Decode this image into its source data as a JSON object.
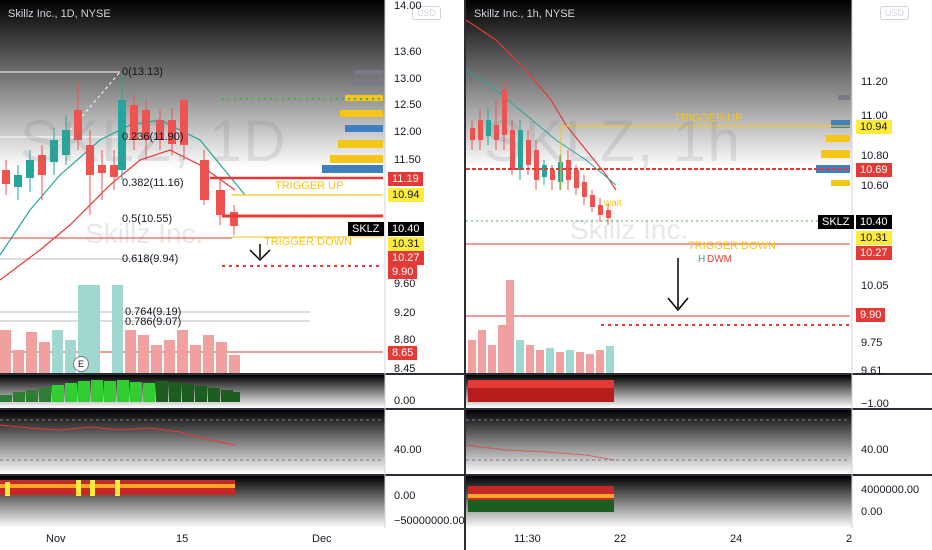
{
  "colors": {
    "up": "#26a69a",
    "down": "#ef5350",
    "trigger_up": "#f5c518",
    "trigger_down": "#e53935",
    "badge_red": "#e53935",
    "badge_yellow": "#ffeb3b"
  },
  "left": {
    "title": "Skillz Inc., 1D, NYSE",
    "currency": "USD",
    "watermark": "SKLZ, 1D",
    "watermark_sub": "Skillz Inc.",
    "price_axis": [
      "14.00",
      "13.60",
      "13.00",
      "12.50",
      "12.00",
      "11.50",
      "9.60",
      "9.20",
      "8.80",
      "8.45"
    ],
    "tags": {
      "t1119": "11.19",
      "t1094": "10.94",
      "sym": "SKLZ",
      "t1040": "10.40",
      "t1031": "10.31",
      "t1027": "10.27",
      "t990": "9.90",
      "t865": "8.65"
    },
    "fib": {
      "f0": "0(13.13)",
      "f236": "0.236(11.90)",
      "f382": "0.382(11.16)",
      "f5": "0.5(10.55)",
      "f618": "0.618(9.94)",
      "f764": "0.764(9.19)",
      "f786": "0.786(9.07)"
    },
    "trigger_up": "TRIGGER UP",
    "trigger_down": "TRIGGER DOWN",
    "earnings": "E",
    "osc1_axis": "0.00",
    "osc2_axis": "40.00",
    "osc3_axis": [
      "0.00",
      "−50000000.00"
    ],
    "x_labels": {
      "nov": "Nov",
      "d15": "15",
      "dec": "Dec"
    }
  },
  "right": {
    "title": "Skillz Inc., 1h, NYSE",
    "currency": "USD",
    "watermark": "SKLZ, 1h",
    "watermark_sub": "Skillz Inc.",
    "price_axis": [
      "11.20",
      "11.00",
      "10.80",
      "10.60",
      "10.05",
      "9.75",
      "9.61"
    ],
    "tags": {
      "t1094": "10.94",
      "t1069": "10.69",
      "sym": "SKLZ",
      "t1040": "10.40",
      "t1031": "10.31",
      "t1027": "10.27",
      "t990": "9.90"
    },
    "trigger_up": "TRIGGER UP",
    "trigger_down": "TRIGGER DOWN",
    "wait": "wait",
    "dwm": "DWM",
    "h": "H",
    "osc1_axis": "−1.00",
    "osc2_axis": "40.00",
    "osc3_axis": [
      "4000000.00",
      "0.00"
    ],
    "x_labels": {
      "t1130": "11:30",
      "d22": "22",
      "d24": "24",
      "d29": "2"
    }
  },
  "chart_data": [
    {
      "type": "candlestick",
      "title": "Skillz Inc., 1D, NYSE",
      "ylim": [
        8.45,
        14.0
      ],
      "x_ticks": [
        "Nov",
        "15",
        "Dec"
      ],
      "levels": {
        "trigger_up": 10.94,
        "trigger_down": 10.31,
        "last": 10.4,
        "stop": 9.9
      }
    },
    {
      "type": "candlestick",
      "title": "Skillz Inc., 1h, NYSE",
      "ylim": [
        9.61,
        11.2
      ],
      "x_ticks": [
        "11:30",
        "22",
        "24"
      ],
      "levels": {
        "trigger_up": 10.94,
        "trigger_down": 10.31,
        "last": 10.4,
        "stop": 9.9,
        "level": 10.69
      }
    }
  ]
}
